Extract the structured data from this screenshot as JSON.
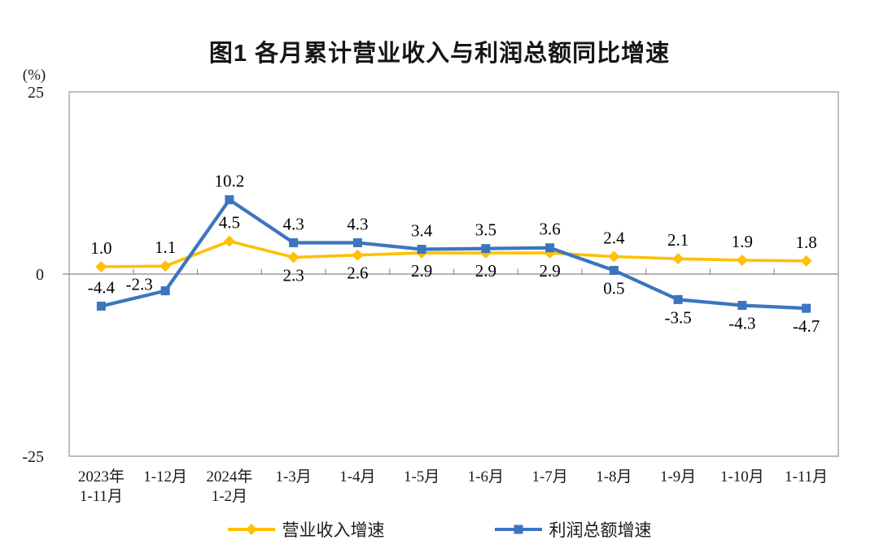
{
  "chart_data": {
    "type": "line",
    "title": "图1  各月累计营业收入与利润总额同比增速",
    "unit_label": "(%)",
    "categories": [
      [
        "2023年",
        "1-11月"
      ],
      [
        "1-12月"
      ],
      [
        "2024年",
        "1-2月"
      ],
      [
        "1-3月"
      ],
      [
        "1-4月"
      ],
      [
        "1-5月"
      ],
      [
        "1-6月"
      ],
      [
        "1-7月"
      ],
      [
        "1-8月"
      ],
      [
        "1-9月"
      ],
      [
        "1-10月"
      ],
      [
        "1-11月"
      ]
    ],
    "y_axis": {
      "ticks": [
        25,
        0,
        -25
      ],
      "max": 25,
      "min": -25
    },
    "grid": "off",
    "legend_position": "bottom",
    "series": [
      {
        "name": "营业收入增速",
        "color": "#FFC000",
        "marker": "diamond",
        "values": [
          1.0,
          1.1,
          4.5,
          2.3,
          2.6,
          2.9,
          2.9,
          2.9,
          2.4,
          2.1,
          1.9,
          1.8
        ],
        "label_pos": [
          "above",
          "above",
          "above",
          "below",
          "below",
          "below",
          "below",
          "below",
          "above",
          "above",
          "above",
          "above"
        ]
      },
      {
        "name": "利润总额增速",
        "color": "#3C75BF",
        "marker": "square",
        "values": [
          -4.4,
          -2.3,
          10.2,
          4.3,
          4.3,
          3.4,
          3.5,
          3.6,
          0.5,
          -3.5,
          -4.3,
          -4.7
        ],
        "label_pos": [
          "above",
          "above",
          "above",
          "above",
          "above",
          "above",
          "above",
          "above",
          "below",
          "below",
          "below",
          "below"
        ],
        "label_offsets": {
          "1": [
            -32,
            -8
          ]
        }
      }
    ]
  }
}
